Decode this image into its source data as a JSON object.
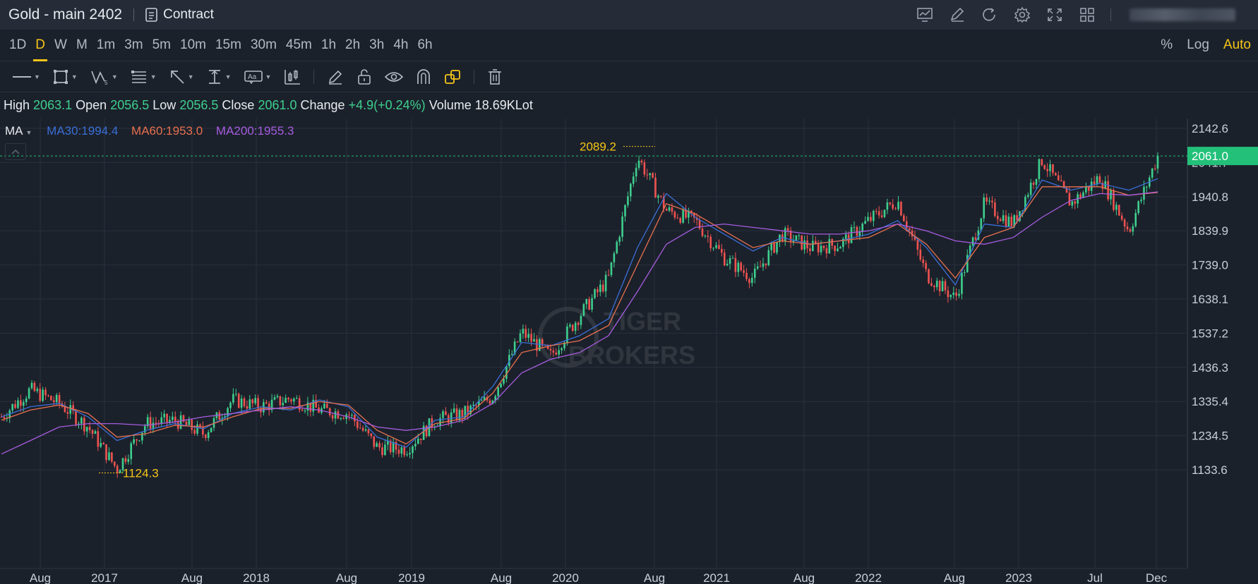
{
  "header": {
    "title": "Gold - main 2402",
    "contract_label": "Contract",
    "icons": [
      "indicator-chart-icon",
      "draw-edit-icon",
      "refresh-icon",
      "settings-gear-icon",
      "fullscreen-icon",
      "layout-grid-icon"
    ]
  },
  "intervals": {
    "items": [
      "1D",
      "D",
      "W",
      "M",
      "1m",
      "3m",
      "5m",
      "10m",
      "15m",
      "30m",
      "45m",
      "1h",
      "2h",
      "3h",
      "4h",
      "6h"
    ],
    "active": "D",
    "scale_options": {
      "percent": "%",
      "log": "Log",
      "auto": "Auto"
    },
    "scale_active": "Auto"
  },
  "toolbar": {
    "tools": [
      "line-tool-icon",
      "rectangle-tool-icon",
      "pattern-tool-icon",
      "fibonacci-tool-icon",
      "arrow-tool-icon",
      "measure-tool-icon",
      "text-tool-icon",
      "candlestick-tool-icon",
      "pencil-icon",
      "lock-icon",
      "eye-icon",
      "magnet-icon",
      "link-shapes-icon",
      "trash-icon"
    ]
  },
  "ohlc": {
    "high_label": "High",
    "high": "2063.1",
    "open_label": "Open",
    "open": "2056.5",
    "low_label": "Low",
    "low": "2056.5",
    "close_label": "Close",
    "close": "2061.0",
    "change_label": "Change",
    "change": "+4.9(+0.24%)",
    "volume_label": "Volume",
    "volume": "18.69KLot"
  },
  "indicators": {
    "ma_label": "MA",
    "ma30": "MA30:1994.4",
    "ma60": "MA60:1953.0",
    "ma200": "MA200:1955.3"
  },
  "watermark": {
    "line1": "TIGER",
    "line2": "BROKERS"
  },
  "colors": {
    "up": "#3ecf8e",
    "down": "#ef5350",
    "accent": "#f5c518",
    "ma30": "#3a6fd8",
    "ma60": "#e7704e",
    "ma200": "#a65ce0",
    "price_tag": "#23c07a"
  },
  "chart_data": {
    "type": "candlestick",
    "y_axis_ticks": [
      "2142.6",
      "2041.7",
      "1940.8",
      "1839.9",
      "1739.0",
      "1638.1",
      "1537.2",
      "1436.3",
      "1335.4",
      "1234.5",
      "1133.6"
    ],
    "ylim": [
      1100,
      2160
    ],
    "x_axis_labels": [
      "Aug",
      "2017",
      "Aug",
      "2018",
      "Aug",
      "2019",
      "Aug",
      "2020",
      "Aug",
      "2021",
      "Aug",
      "2022",
      "Aug",
      "2023",
      "Jul",
      "Dec"
    ],
    "last_price": "2061.0",
    "high_marker": "2089.2",
    "low_marker": "1124.3",
    "series": [
      {
        "name": "MA30",
        "values": [
          1290,
          1320,
          1330,
          1290,
          1220,
          1250,
          1270,
          1255,
          1300,
          1320,
          1310,
          1340,
          1320,
          1230,
          1200,
          1280,
          1290,
          1380,
          1510,
          1500,
          1530,
          1580,
          1790,
          1950,
          1880,
          1830,
          1780,
          1820,
          1800,
          1810,
          1830,
          1870,
          1790,
          1680,
          1860,
          1850,
          1990,
          1960,
          1980,
          1960,
          1994
        ]
      },
      {
        "name": "MA60",
        "values": [
          1280,
          1310,
          1325,
          1300,
          1230,
          1240,
          1265,
          1260,
          1290,
          1315,
          1315,
          1335,
          1325,
          1250,
          1210,
          1270,
          1285,
          1360,
          1480,
          1500,
          1515,
          1560,
          1740,
          1920,
          1890,
          1840,
          1790,
          1810,
          1800,
          1810,
          1820,
          1860,
          1800,
          1700,
          1820,
          1850,
          1970,
          1970,
          1970,
          1945,
          1953
        ]
      },
      {
        "name": "MA200",
        "values": [
          1180,
          1220,
          1260,
          1270,
          1270,
          1265,
          1275,
          1290,
          1300,
          1310,
          1320,
          1310,
          1290,
          1260,
          1250,
          1260,
          1280,
          1330,
          1420,
          1460,
          1480,
          1530,
          1660,
          1800,
          1850,
          1860,
          1850,
          1840,
          1830,
          1830,
          1840,
          1860,
          1840,
          1810,
          1800,
          1820,
          1880,
          1930,
          1950,
          1945,
          1955
        ]
      }
    ],
    "close_path": [
      1290,
      1370,
      1330,
      1260,
      1135,
      1270,
      1280,
      1240,
      1340,
      1320,
      1345,
      1310,
      1300,
      1200,
      1195,
      1280,
      1300,
      1350,
      1540,
      1470,
      1590,
      1700,
      2060,
      1900,
      1870,
      1760,
      1700,
      1830,
      1790,
      1800,
      1870,
      1930,
      1710,
      1640,
      1920,
      1860,
      2050,
      1920,
      2000,
      1840,
      2061
    ]
  }
}
